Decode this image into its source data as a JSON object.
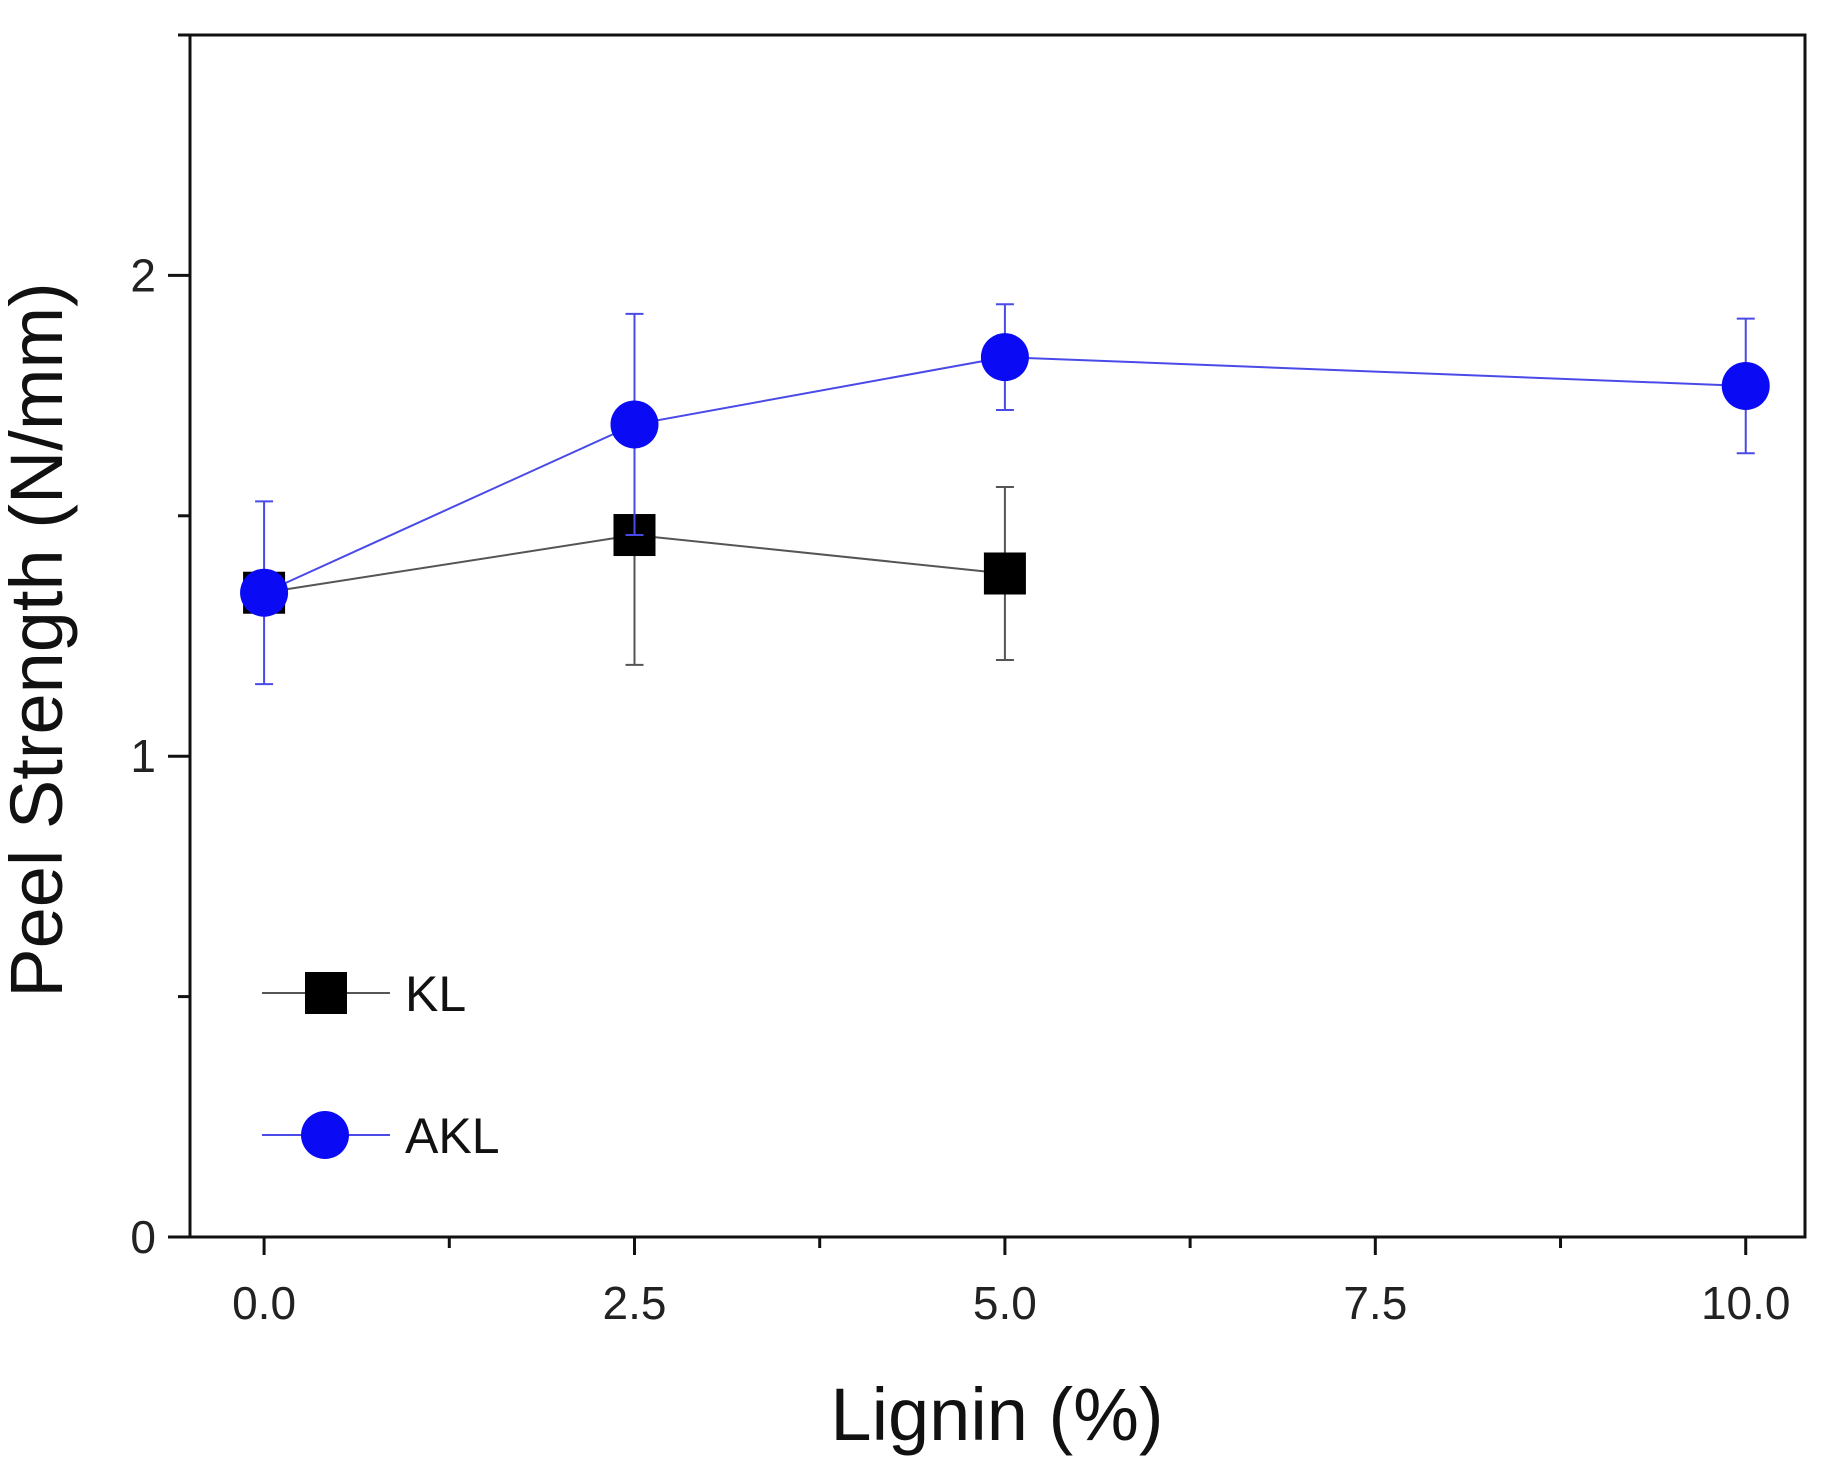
{
  "chart_data": {
    "type": "line",
    "title": "",
    "xlabel": "Lignin (%)",
    "ylabel": "Peel Strength (N/mm)",
    "xlim": [
      -0.5,
      10.4
    ],
    "ylim": [
      0,
      2.5
    ],
    "x_ticks": [
      0.0,
      2.5,
      5.0,
      7.5,
      10.0
    ],
    "x_tick_labels": [
      "0.0",
      "2.5",
      "5.0",
      "7.5",
      "10.0"
    ],
    "y_ticks": [
      0,
      1,
      2
    ],
    "y_tick_labels": [
      "0",
      "1",
      "2"
    ],
    "grid": false,
    "legend_position": "bottom-left",
    "series": [
      {
        "name": "KL",
        "marker": "square",
        "color": "#000000",
        "line_color": "#555555",
        "x": [
          0.0,
          2.5,
          5.0
        ],
        "y": [
          1.34,
          1.46,
          1.38
        ],
        "error": [
          0.0,
          0.27,
          0.18
        ]
      },
      {
        "name": "AKL",
        "marker": "circle",
        "color": "#0a0af5",
        "line_color": "#4a4ae8",
        "x": [
          0.0,
          2.5,
          5.0,
          10.0
        ],
        "y": [
          1.34,
          1.69,
          1.83,
          1.77
        ],
        "error": [
          0.19,
          0.23,
          0.11,
          0.14
        ]
      }
    ]
  }
}
